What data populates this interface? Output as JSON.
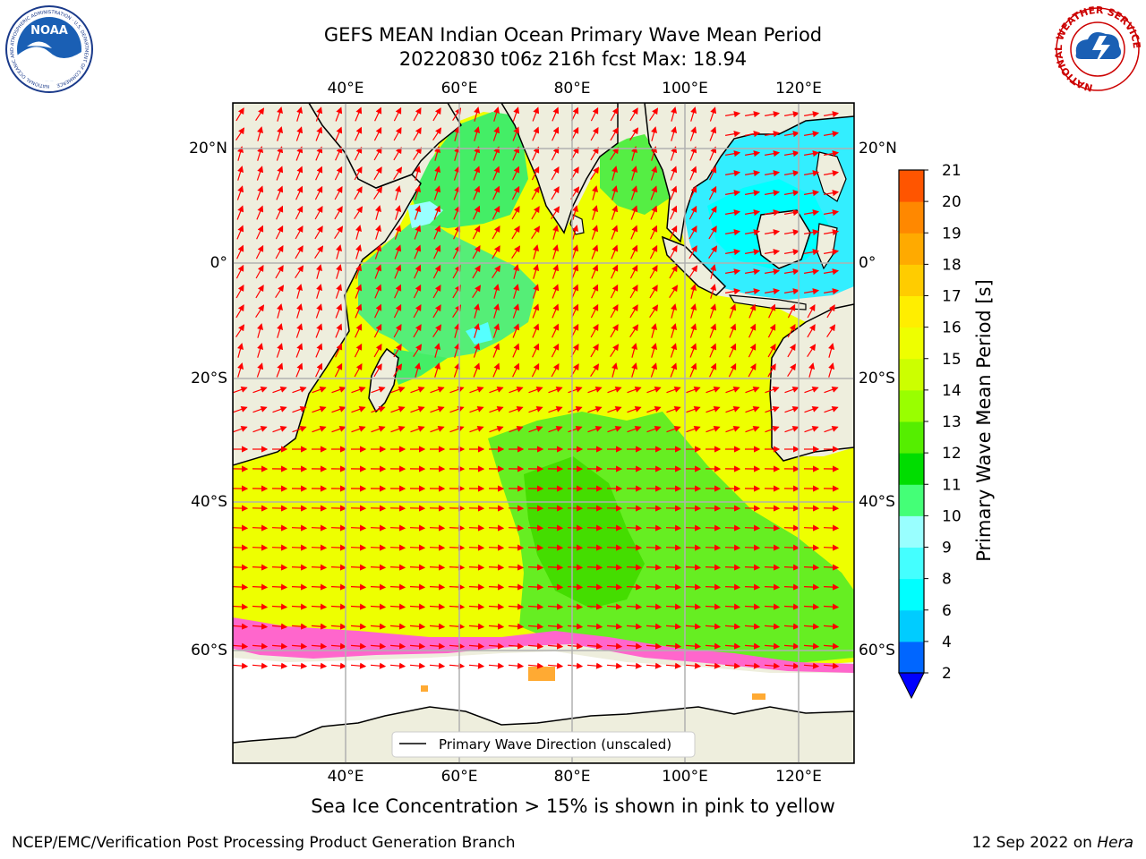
{
  "title": {
    "line1": "GEFS MEAN Indian Ocean Primary Wave Mean Period",
    "line2": "20220830 t06z 216h fcst   Max: 18.94"
  },
  "map": {
    "lon_ticks": [
      "40°E",
      "60°E",
      "80°E",
      "100°E",
      "120°E"
    ],
    "lat_ticks": [
      "20°N",
      "0°",
      "20°S",
      "40°S",
      "60°S"
    ],
    "lon_range": [
      20,
      130
    ],
    "lat_range": [
      -70,
      27
    ],
    "legend_label": "Primary Wave Direction (unscaled)",
    "land_color": "#eeeedd",
    "arrow_color": "#ff0000"
  },
  "colorbar": {
    "label": "Primary Wave Mean Period [s]",
    "levels": [
      "2",
      "4",
      "6",
      "8",
      "9",
      "10",
      "11",
      "12",
      "13",
      "14",
      "15",
      "16",
      "17",
      "18",
      "19",
      "20",
      "21"
    ],
    "colors": [
      "#0066ff",
      "#00ccff",
      "#00ffff",
      "#44ffff",
      "#99ffff",
      "#44ff77",
      "#00dd00",
      "#55ee00",
      "#99ff00",
      "#ccff00",
      "#eeff00",
      "#ffee00",
      "#ffcc00",
      "#ffaa00",
      "#ff8800",
      "#ff5500",
      "#ff2200",
      "#ff0000"
    ],
    "extend_color": "#0000ff"
  },
  "caption": "Sea Ice Concentration > 15% is shown in pink to yellow",
  "footer": {
    "left": "NCEP/EMC/Verification Post Processing Product Generation Branch",
    "right_date": "12 Sep 2022 on",
    "right_machine": "Hera"
  },
  "logos": {
    "noaa_text": "NOAA",
    "noaa_ring": "NATIONAL OCEANIC AND ATMOSPHERIC ADMINISTRATION · U.S. DEPARTMENT OF COMMERCE",
    "nws_ring": "NATIONAL WEATHER SERVICE"
  }
}
